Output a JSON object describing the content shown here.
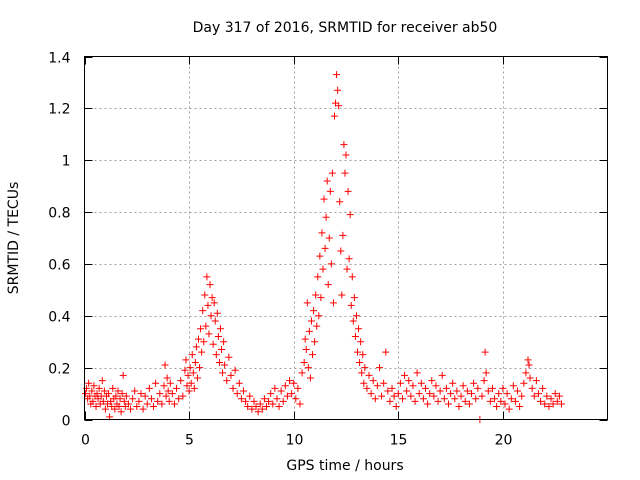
{
  "chart_data": {
    "type": "scatter",
    "title": "Day 317 of 2016, SRMTID for receiver ab50",
    "xlabel": "GPS time / hours",
    "ylabel": "SRMTID / TECUs",
    "xlim": [
      0,
      25
    ],
    "ylim": [
      0,
      1.4
    ],
    "x_ticks": [
      0,
      5,
      10,
      15,
      20
    ],
    "x_tick_labels": [
      "0",
      "5",
      "10",
      "15",
      "20"
    ],
    "y_ticks": [
      0,
      0.2,
      0.4,
      0.6,
      0.8,
      1.0,
      1.2,
      1.4
    ],
    "y_tick_labels": [
      "0",
      "0.2",
      "0.4",
      "0.6",
      "0.8",
      "1",
      "1.2",
      "1.4"
    ],
    "grid": true,
    "marker": "plus",
    "color": "#ff0000",
    "series": [
      {
        "name": "SRMTID",
        "points": [
          [
            0.05,
            0.1
          ],
          [
            0.1,
            0.12
          ],
          [
            0.15,
            0.08
          ],
          [
            0.2,
            0.14
          ],
          [
            0.25,
            0.09
          ],
          [
            0.3,
            0.06
          ],
          [
            0.35,
            0.11
          ],
          [
            0.4,
            0.07
          ],
          [
            0.45,
            0.13
          ],
          [
            0.5,
            0.09
          ],
          [
            0.55,
            0.05
          ],
          [
            0.6,
            0.1
          ],
          [
            0.65,
            0.08
          ],
          [
            0.7,
            0.12
          ],
          [
            0.75,
            0.06
          ],
          [
            0.8,
            0.09
          ],
          [
            0.85,
            0.15
          ],
          [
            0.9,
            0.07
          ],
          [
            0.95,
            0.11
          ],
          [
            1.0,
            0.04
          ],
          [
            1.05,
            0.09
          ],
          [
            1.1,
            0.06
          ],
          [
            1.15,
            0.1
          ],
          [
            1.2,
            0.01
          ],
          [
            1.25,
            0.07
          ],
          [
            1.3,
            0.05
          ],
          [
            1.35,
            0.12
          ],
          [
            1.4,
            0.08
          ],
          [
            1.45,
            0.04
          ],
          [
            1.5,
            0.09
          ],
          [
            1.55,
            0.06
          ],
          [
            1.6,
            0.11
          ],
          [
            1.65,
            0.05
          ],
          [
            1.7,
            0.08
          ],
          [
            1.75,
            0.03
          ],
          [
            1.8,
            0.1
          ],
          [
            1.85,
            0.17
          ],
          [
            1.9,
            0.07
          ],
          [
            1.95,
            0.05
          ],
          [
            2.0,
            0.09
          ],
          [
            2.1,
            0.06
          ],
          [
            2.2,
            0.04
          ],
          [
            2.3,
            0.08
          ],
          [
            2.4,
            0.11
          ],
          [
            2.5,
            0.05
          ],
          [
            2.6,
            0.07
          ],
          [
            2.7,
            0.1
          ],
          [
            2.8,
            0.04
          ],
          [
            2.9,
            0.09
          ],
          [
            3.0,
            0.06
          ],
          [
            3.1,
            0.12
          ],
          [
            3.2,
            0.08
          ],
          [
            3.3,
            0.05
          ],
          [
            3.4,
            0.14
          ],
          [
            3.5,
            0.07
          ],
          [
            3.6,
            0.1
          ],
          [
            3.7,
            0.06
          ],
          [
            3.8,
            0.13
          ],
          [
            3.85,
            0.21
          ],
          [
            3.9,
            0.09
          ],
          [
            3.95,
            0.16
          ],
          [
            4.0,
            0.11
          ],
          [
            4.05,
            0.07
          ],
          [
            4.1,
            0.14
          ],
          [
            4.2,
            0.1
          ],
          [
            4.3,
            0.06
          ],
          [
            4.4,
            0.12
          ],
          [
            4.5,
            0.08
          ],
          [
            4.6,
            0.15
          ],
          [
            4.7,
            0.09
          ],
          [
            4.8,
            0.19
          ],
          [
            4.85,
            0.23
          ],
          [
            4.9,
            0.13
          ],
          [
            4.95,
            0.17
          ],
          [
            5.0,
            0.11
          ],
          [
            5.05,
            0.2
          ],
          [
            5.1,
            0.14
          ],
          [
            5.15,
            0.25
          ],
          [
            5.2,
            0.18
          ],
          [
            5.25,
            0.12
          ],
          [
            5.3,
            0.22
          ],
          [
            5.35,
            0.28
          ],
          [
            5.4,
            0.16
          ],
          [
            5.45,
            0.31
          ],
          [
            5.5,
            0.2
          ],
          [
            5.55,
            0.35
          ],
          [
            5.6,
            0.26
          ],
          [
            5.65,
            0.42
          ],
          [
            5.7,
            0.3
          ],
          [
            5.75,
            0.48
          ],
          [
            5.8,
            0.36
          ],
          [
            5.85,
            0.55
          ],
          [
            5.9,
            0.44
          ],
          [
            5.95,
            0.33
          ],
          [
            6.0,
            0.52
          ],
          [
            6.05,
            0.4
          ],
          [
            6.1,
            0.47
          ],
          [
            6.15,
            0.29
          ],
          [
            6.2,
            0.45
          ],
          [
            6.25,
            0.38
          ],
          [
            6.3,
            0.25
          ],
          [
            6.35,
            0.41
          ],
          [
            6.4,
            0.32
          ],
          [
            6.45,
            0.22
          ],
          [
            6.5,
            0.35
          ],
          [
            6.55,
            0.27
          ],
          [
            6.6,
            0.18
          ],
          [
            6.65,
            0.3
          ],
          [
            6.7,
            0.21
          ],
          [
            6.8,
            0.15
          ],
          [
            6.9,
            0.24
          ],
          [
            7.0,
            0.17
          ],
          [
            7.1,
            0.12
          ],
          [
            7.2,
            0.19
          ],
          [
            7.3,
            0.1
          ],
          [
            7.4,
            0.14
          ],
          [
            7.5,
            0.08
          ],
          [
            7.6,
            0.11
          ],
          [
            7.7,
            0.07
          ],
          [
            7.8,
            0.05
          ],
          [
            7.9,
            0.09
          ],
          [
            8.0,
            0.04
          ],
          [
            8.1,
            0.07
          ],
          [
            8.2,
            0.05
          ],
          [
            8.3,
            0.03
          ],
          [
            8.4,
            0.06
          ],
          [
            8.5,
            0.04
          ],
          [
            8.6,
            0.08
          ],
          [
            8.7,
            0.05
          ],
          [
            8.8,
            0.07
          ],
          [
            8.9,
            0.1
          ],
          [
            9.0,
            0.06
          ],
          [
            9.1,
            0.12
          ],
          [
            9.2,
            0.08
          ],
          [
            9.3,
            0.05
          ],
          [
            9.4,
            0.11
          ],
          [
            9.5,
            0.07
          ],
          [
            9.6,
            0.13
          ],
          [
            9.7,
            0.09
          ],
          [
            9.8,
            0.15
          ],
          [
            9.9,
            0.1
          ],
          [
            10.0,
            0.14
          ],
          [
            10.1,
            0.08
          ],
          [
            10.2,
            0.12
          ],
          [
            10.3,
            0.06
          ],
          [
            10.4,
            0.18
          ],
          [
            10.5,
            0.22
          ],
          [
            10.55,
            0.31
          ],
          [
            10.6,
            0.27
          ],
          [
            10.65,
            0.45
          ],
          [
            10.7,
            0.2
          ],
          [
            10.75,
            0.34
          ],
          [
            10.8,
            0.16
          ],
          [
            10.85,
            0.38
          ],
          [
            10.9,
            0.25
          ],
          [
            10.95,
            0.42
          ],
          [
            11.0,
            0.3
          ],
          [
            11.05,
            0.48
          ],
          [
            11.1,
            0.36
          ],
          [
            11.15,
            0.55
          ],
          [
            11.2,
            0.4
          ],
          [
            11.25,
            0.63
          ],
          [
            11.3,
            0.47
          ],
          [
            11.35,
            0.72
          ],
          [
            11.4,
            0.58
          ],
          [
            11.45,
            0.85
          ],
          [
            11.5,
            0.66
          ],
          [
            11.55,
            0.78
          ],
          [
            11.6,
            0.92
          ],
          [
            11.65,
            0.52
          ],
          [
            11.7,
            0.7
          ],
          [
            11.75,
            0.88
          ],
          [
            11.8,
            0.6
          ],
          [
            11.85,
            0.95
          ],
          [
            11.9,
            0.45
          ],
          [
            11.95,
            1.17
          ],
          [
            12.0,
            1.22
          ],
          [
            12.05,
            1.33
          ],
          [
            12.1,
            1.27
          ],
          [
            12.15,
            1.21
          ],
          [
            12.2,
            0.84
          ],
          [
            12.25,
            0.65
          ],
          [
            12.3,
            0.48
          ],
          [
            12.35,
            0.71
          ],
          [
            12.4,
            1.06
          ],
          [
            12.45,
            0.95
          ],
          [
            12.5,
            1.02
          ],
          [
            12.55,
            0.58
          ],
          [
            12.6,
            0.88
          ],
          [
            12.65,
            0.62
          ],
          [
            12.7,
            0.79
          ],
          [
            12.75,
            0.44
          ],
          [
            12.8,
            0.55
          ],
          [
            12.85,
            0.38
          ],
          [
            12.9,
            0.47
          ],
          [
            12.95,
            0.32
          ],
          [
            13.0,
            0.4
          ],
          [
            13.05,
            0.26
          ],
          [
            13.1,
            0.35
          ],
          [
            13.15,
            0.22
          ],
          [
            13.2,
            0.3
          ],
          [
            13.25,
            0.18
          ],
          [
            13.3,
            0.25
          ],
          [
            13.35,
            0.14
          ],
          [
            13.4,
            0.2
          ],
          [
            13.5,
            0.12
          ],
          [
            13.6,
            0.17
          ],
          [
            13.7,
            0.1
          ],
          [
            13.8,
            0.15
          ],
          [
            13.9,
            0.08
          ],
          [
            14.0,
            0.13
          ],
          [
            14.1,
            0.2
          ],
          [
            14.2,
            0.09
          ],
          [
            14.3,
            0.14
          ],
          [
            14.4,
            0.26
          ],
          [
            14.5,
            0.11
          ],
          [
            14.6,
            0.07
          ],
          [
            14.7,
            0.12
          ],
          [
            14.8,
            0.09
          ],
          [
            14.9,
            0.05
          ],
          [
            15.0,
            0.1
          ],
          [
            15.1,
            0.14
          ],
          [
            15.2,
            0.08
          ],
          [
            15.3,
            0.17
          ],
          [
            15.4,
            0.11
          ],
          [
            15.5,
            0.15
          ],
          [
            15.6,
            0.09
          ],
          [
            15.7,
            0.13
          ],
          [
            15.8,
            0.07
          ],
          [
            15.9,
            0.18
          ],
          [
            16.0,
            0.1
          ],
          [
            16.1,
            0.14
          ],
          [
            16.2,
            0.08
          ],
          [
            16.3,
            0.12
          ],
          [
            16.4,
            0.06
          ],
          [
            16.5,
            0.1
          ],
          [
            16.6,
            0.15
          ],
          [
            16.7,
            0.09
          ],
          [
            16.8,
            0.13
          ],
          [
            16.9,
            0.07
          ],
          [
            17.0,
            0.11
          ],
          [
            17.1,
            0.17
          ],
          [
            17.2,
            0.08
          ],
          [
            17.3,
            0.12
          ],
          [
            17.4,
            0.06
          ],
          [
            17.5,
            0.1
          ],
          [
            17.6,
            0.14
          ],
          [
            17.7,
            0.08
          ],
          [
            17.8,
            0.11
          ],
          [
            17.9,
            0.05
          ],
          [
            18.0,
            0.09
          ],
          [
            18.1,
            0.13
          ],
          [
            18.2,
            0.07
          ],
          [
            18.3,
            0.11
          ],
          [
            18.4,
            0.06
          ],
          [
            18.5,
            0.1
          ],
          [
            18.6,
            0.14
          ],
          [
            18.7,
            0.08
          ],
          [
            18.8,
            0.12
          ],
          [
            18.9,
            0.0
          ],
          [
            19.0,
            0.09
          ],
          [
            19.1,
            0.15
          ],
          [
            19.15,
            0.26
          ],
          [
            19.2,
            0.18
          ],
          [
            19.3,
            0.11
          ],
          [
            19.4,
            0.07
          ],
          [
            19.5,
            0.12
          ],
          [
            19.6,
            0.08
          ],
          [
            19.7,
            0.05
          ],
          [
            19.8,
            0.1
          ],
          [
            19.9,
            0.07
          ],
          [
            20.0,
            0.12
          ],
          [
            20.1,
            0.06
          ],
          [
            20.2,
            0.1
          ],
          [
            20.3,
            0.04
          ],
          [
            20.4,
            0.08
          ],
          [
            20.5,
            0.13
          ],
          [
            20.6,
            0.07
          ],
          [
            20.7,
            0.11
          ],
          [
            20.8,
            0.05
          ],
          [
            20.9,
            0.09
          ],
          [
            21.0,
            0.14
          ],
          [
            21.1,
            0.18
          ],
          [
            21.2,
            0.23
          ],
          [
            21.25,
            0.21
          ],
          [
            21.3,
            0.16
          ],
          [
            21.4,
            0.12
          ],
          [
            21.5,
            0.09
          ],
          [
            21.6,
            0.15
          ],
          [
            21.7,
            0.1
          ],
          [
            21.8,
            0.07
          ],
          [
            21.9,
            0.12
          ],
          [
            22.0,
            0.06
          ],
          [
            22.1,
            0.09
          ],
          [
            22.2,
            0.05
          ],
          [
            22.3,
            0.08
          ],
          [
            22.4,
            0.06
          ],
          [
            22.5,
            0.1
          ],
          [
            22.6,
            0.07
          ],
          [
            22.7,
            0.09
          ],
          [
            22.8,
            0.06
          ]
        ]
      }
    ]
  }
}
